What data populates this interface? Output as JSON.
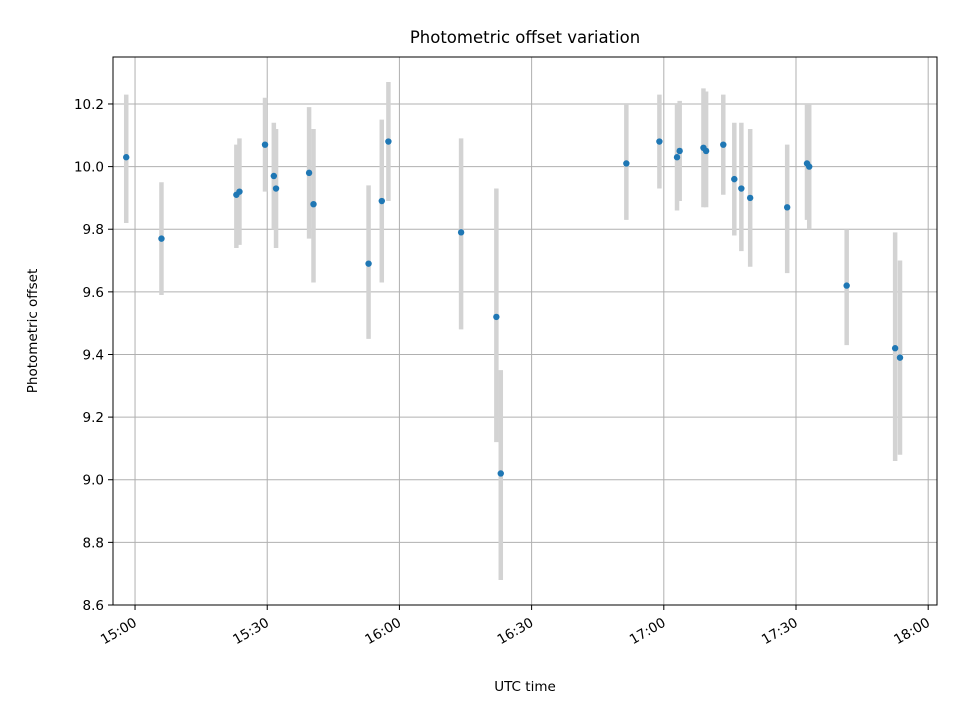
{
  "chart_data": {
    "type": "scatter",
    "title": "Photometric offset variation",
    "xlabel": "UTC time",
    "ylabel": "Photometric offset",
    "xlim": [
      "14:55",
      "18:02"
    ],
    "ylim": [
      8.6,
      10.35
    ],
    "x_ticks": [
      "15:00",
      "15:30",
      "16:00",
      "16:30",
      "17:00",
      "17:30",
      "18:00"
    ],
    "y_ticks": [
      8.6,
      8.8,
      9.0,
      9.2,
      9.4,
      9.6,
      9.8,
      10.0,
      10.2
    ],
    "grid": true,
    "colors": {
      "point": "#1f77b4",
      "error_bar": "#d3d3d3",
      "grid": "#b0b0b0"
    },
    "series": [
      {
        "points": [
          {
            "x": "14:58",
            "y": 10.03,
            "lo": 9.82,
            "hi": 10.23
          },
          {
            "x": "15:06",
            "y": 9.77,
            "lo": 9.59,
            "hi": 9.95
          },
          {
            "x": "15:23",
            "y": 9.91,
            "lo": 9.74,
            "hi": 10.07
          },
          {
            "x": "15:23.7",
            "y": 9.92,
            "lo": 9.75,
            "hi": 10.09
          },
          {
            "x": "15:29.5",
            "y": 10.07,
            "lo": 9.92,
            "hi": 10.22
          },
          {
            "x": "15:31.5",
            "y": 9.97,
            "lo": 9.8,
            "hi": 10.14
          },
          {
            "x": "15:32",
            "y": 9.93,
            "lo": 9.74,
            "hi": 10.12
          },
          {
            "x": "15:39.5",
            "y": 9.98,
            "lo": 9.77,
            "hi": 10.19
          },
          {
            "x": "15:40.5",
            "y": 9.88,
            "lo": 9.63,
            "hi": 10.12
          },
          {
            "x": "15:53",
            "y": 9.69,
            "lo": 9.45,
            "hi": 9.94
          },
          {
            "x": "15:56",
            "y": 9.89,
            "lo": 9.63,
            "hi": 10.15
          },
          {
            "x": "15:57.5",
            "y": 10.08,
            "lo": 9.89,
            "hi": 10.27
          },
          {
            "x": "16:14",
            "y": 9.79,
            "lo": 9.48,
            "hi": 10.09
          },
          {
            "x": "16:22",
            "y": 9.52,
            "lo": 9.12,
            "hi": 9.93
          },
          {
            "x": "16:23",
            "y": 9.02,
            "lo": 8.68,
            "hi": 9.35
          },
          {
            "x": "16:51.5",
            "y": 10.01,
            "lo": 9.83,
            "hi": 10.2
          },
          {
            "x": "16:59",
            "y": 10.08,
            "lo": 9.93,
            "hi": 10.23
          },
          {
            "x": "17:03",
            "y": 10.03,
            "lo": 9.86,
            "hi": 10.2
          },
          {
            "x": "17:03.6",
            "y": 10.05,
            "lo": 9.89,
            "hi": 10.21
          },
          {
            "x": "17:09",
            "y": 10.06,
            "lo": 9.87,
            "hi": 10.25
          },
          {
            "x": "17:09.6",
            "y": 10.05,
            "lo": 9.87,
            "hi": 10.24
          },
          {
            "x": "17:13.5",
            "y": 10.07,
            "lo": 9.91,
            "hi": 10.23
          },
          {
            "x": "17:16",
            "y": 9.96,
            "lo": 9.78,
            "hi": 10.14
          },
          {
            "x": "17:17.6",
            "y": 9.93,
            "lo": 9.73,
            "hi": 10.14
          },
          {
            "x": "17:19.6",
            "y": 9.9,
            "lo": 9.68,
            "hi": 10.12
          },
          {
            "x": "17:28",
            "y": 9.87,
            "lo": 9.66,
            "hi": 10.07
          },
          {
            "x": "17:32.5",
            "y": 10.01,
            "lo": 9.83,
            "hi": 10.2
          },
          {
            "x": "17:33",
            "y": 10.0,
            "lo": 9.8,
            "hi": 10.2
          },
          {
            "x": "17:41.5",
            "y": 9.62,
            "lo": 9.43,
            "hi": 9.8
          },
          {
            "x": "17:52.5",
            "y": 9.42,
            "lo": 9.06,
            "hi": 9.79
          },
          {
            "x": "17:53.6",
            "y": 9.39,
            "lo": 9.08,
            "hi": 9.7
          }
        ]
      }
    ]
  }
}
